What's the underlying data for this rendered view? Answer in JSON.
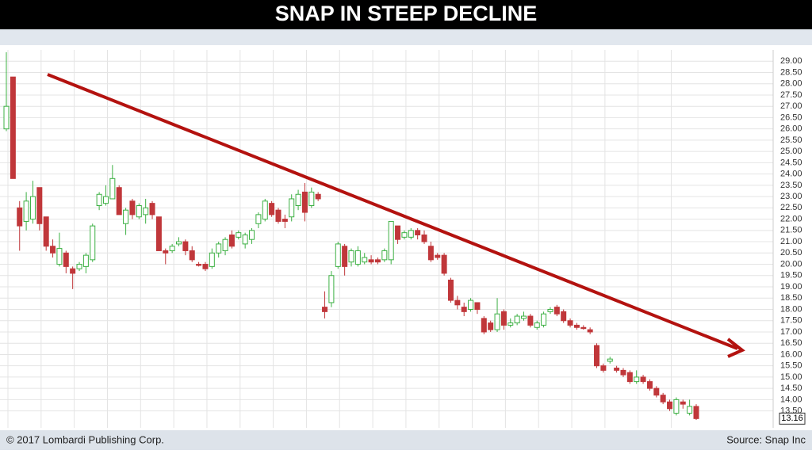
{
  "chart_data": {
    "type": "candlestick",
    "title": "SNAP IN STEEP DECLINE",
    "footer_left": "© 2017 Lombardi Publishing Corp.",
    "source": "Source: Snap Inc",
    "last_price": 13.16,
    "up_color": "#3cb043",
    "down_color": "#c0373a",
    "open": [
      26.0,
      28.3,
      22.5,
      21.9,
      22.0,
      23.4,
      22.1,
      20.8,
      20.0,
      20.5,
      19.8,
      19.8,
      19.9,
      20.2,
      22.6,
      22.7,
      22.9,
      23.4,
      21.8,
      22.8,
      22.1,
      22.2,
      22.7,
      22.1,
      20.6,
      20.6,
      20.9,
      21.0,
      20.6,
      20.0,
      20.0,
      19.9,
      20.5,
      20.6,
      21.3,
      21.2,
      20.9,
      21.1,
      21.8,
      22.0,
      22.7,
      22.4,
      22.0,
      22.1,
      22.6,
      23.2,
      22.6,
      23.1,
      18.1,
      18.3,
      19.9,
      20.8,
      20.1,
      20.0,
      20.1,
      20.2,
      20.2,
      20.2,
      20.2,
      21.7,
      21.2,
      21.2,
      21.5,
      21.3,
      20.8,
      20.4,
      20.4,
      19.3,
      18.4,
      18.1,
      18.0,
      18.3,
      17.6,
      17.4,
      17.1,
      17.9,
      17.3,
      17.4,
      17.6,
      17.7,
      17.2,
      17.3,
      17.9,
      18.1,
      17.9,
      17.5,
      17.3,
      17.2,
      17.1,
      16.4,
      15.5,
      15.7,
      15.4,
      15.3,
      15.2,
      14.8,
      15.0,
      14.8,
      14.5,
      14.2,
      13.9,
      13.4,
      13.9,
      13.4,
      13.7
    ],
    "high": [
      29.4,
      28.3,
      22.8,
      23.2,
      23.7,
      23.4,
      22.1,
      21.1,
      21.4,
      20.6,
      19.9,
      20.1,
      20.5,
      21.8,
      23.2,
      23.5,
      24.4,
      23.5,
      22.5,
      22.9,
      22.7,
      22.9,
      22.8,
      22.1,
      20.7,
      20.9,
      21.2,
      21.1,
      20.8,
      20.1,
      20.1,
      20.7,
      21.0,
      21.2,
      21.5,
      21.5,
      21.4,
      21.6,
      22.3,
      22.9,
      22.8,
      22.5,
      22.2,
      23.1,
      23.3,
      23.6,
      23.4,
      23.2,
      18.8,
      19.7,
      21.0,
      20.9,
      20.7,
      20.8,
      20.5,
      20.4,
      20.3,
      20.7,
      21.9,
      21.7,
      21.5,
      21.6,
      21.6,
      21.5,
      21.0,
      20.5,
      20.5,
      19.4,
      18.6,
      18.3,
      18.5,
      18.3,
      17.7,
      17.5,
      18.5,
      18.0,
      17.6,
      17.8,
      17.9,
      17.8,
      17.5,
      17.9,
      18.1,
      18.2,
      18.0,
      17.6,
      17.4,
      17.3,
      17.2,
      16.5,
      15.6,
      15.9,
      15.5,
      15.4,
      15.3,
      15.3,
      15.1,
      14.9,
      14.6,
      14.3,
      14.0,
      14.1,
      14.0,
      14.0,
      13.8
    ],
    "low": [
      25.9,
      23.8,
      20.6,
      21.5,
      21.8,
      21.5,
      20.6,
      20.3,
      19.9,
      19.6,
      18.9,
      19.7,
      19.6,
      20.1,
      22.4,
      22.6,
      22.9,
      22.2,
      21.3,
      22.0,
      22.0,
      21.8,
      22.0,
      20.6,
      20.0,
      20.5,
      20.8,
      20.4,
      20.1,
      19.9,
      19.7,
      19.8,
      20.3,
      20.4,
      20.7,
      21.1,
      20.7,
      20.9,
      21.6,
      21.9,
      22.1,
      21.8,
      21.6,
      21.9,
      22.4,
      21.9,
      22.5,
      22.8,
      17.6,
      18.1,
      19.8,
      19.5,
      19.9,
      19.9,
      20.0,
      20.0,
      20.0,
      20.1,
      20.0,
      20.9,
      21.1,
      21.1,
      21.1,
      20.9,
      20.1,
      20.2,
      19.5,
      18.3,
      18.0,
      17.7,
      17.9,
      17.8,
      16.9,
      17.0,
      17.0,
      17.1,
      17.2,
      17.3,
      17.5,
      17.2,
      17.1,
      17.2,
      17.8,
      17.7,
      17.4,
      17.2,
      17.1,
      17.1,
      16.9,
      15.4,
      15.2,
      15.6,
      15.2,
      15.0,
      14.7,
      14.7,
      14.7,
      14.4,
      14.1,
      13.8,
      13.5,
      13.3,
      13.6,
      13.3,
      13.1
    ],
    "close": [
      27.0,
      23.8,
      21.7,
      22.8,
      23.0,
      21.8,
      20.8,
      20.5,
      20.7,
      19.9,
      19.6,
      20.0,
      20.4,
      21.7,
      23.1,
      23.0,
      23.8,
      22.2,
      22.4,
      22.2,
      22.6,
      22.5,
      22.2,
      20.6,
      20.5,
      20.8,
      21.0,
      20.6,
      20.2,
      19.95,
      19.8,
      20.5,
      20.9,
      21.1,
      20.8,
      21.4,
      21.3,
      21.5,
      22.2,
      22.8,
      22.2,
      21.9,
      21.9,
      22.9,
      23.1,
      22.3,
      23.2,
      22.9,
      17.9,
      19.5,
      20.9,
      19.9,
      20.6,
      20.6,
      20.3,
      20.1,
      20.1,
      20.6,
      21.9,
      21.1,
      21.4,
      21.5,
      21.3,
      21.0,
      20.2,
      20.3,
      19.6,
      18.4,
      18.2,
      17.9,
      18.4,
      18.0,
      17.0,
      17.1,
      17.8,
      17.3,
      17.4,
      17.7,
      17.7,
      17.3,
      17.4,
      17.8,
      18.0,
      17.8,
      17.5,
      17.3,
      17.2,
      17.15,
      17.0,
      15.5,
      15.3,
      15.8,
      15.3,
      15.1,
      14.8,
      15.0,
      14.8,
      14.5,
      14.2,
      13.9,
      13.6,
      14.0,
      13.8,
      13.7,
      13.16
    ],
    "ylim": [
      12.75,
      29.5
    ],
    "yticks": [
      {
        "value": 13.5,
        "label": "13.50"
      },
      {
        "value": 14,
        "label": "14.00"
      },
      {
        "value": 14.5,
        "label": "14.50"
      },
      {
        "value": 15,
        "label": "15.00"
      },
      {
        "value": 15.5,
        "label": "15.50"
      },
      {
        "value": 16,
        "label": "16.00"
      },
      {
        "value": 16.5,
        "label": "16.50"
      },
      {
        "value": 17,
        "label": "17.00"
      },
      {
        "value": 17.5,
        "label": "17.50"
      },
      {
        "value": 18,
        "label": "18.00"
      },
      {
        "value": 18.5,
        "label": "18.50"
      },
      {
        "value": 19,
        "label": "19.00"
      },
      {
        "value": 19.5,
        "label": "19.50"
      },
      {
        "value": 20,
        "label": "20.00"
      },
      {
        "value": 20.5,
        "label": "20.50"
      },
      {
        "value": 21,
        "label": "21.00"
      },
      {
        "value": 21.5,
        "label": "21.50"
      },
      {
        "value": 22,
        "label": "22.00"
      },
      {
        "value": 22.5,
        "label": "22.50"
      },
      {
        "value": 23,
        "label": "23.00"
      },
      {
        "value": 23.5,
        "label": "23.50"
      },
      {
        "value": 24,
        "label": "24.00"
      },
      {
        "value": 24.5,
        "label": "24.50"
      },
      {
        "value": 25,
        "label": "25.00"
      },
      {
        "value": 25.5,
        "label": "25.50"
      },
      {
        "value": 26,
        "label": "26.00"
      },
      {
        "value": 26.5,
        "label": "26.50"
      },
      {
        "value": 27,
        "label": "27.00"
      },
      {
        "value": 27.5,
        "label": "27.50"
      },
      {
        "value": 28,
        "label": "28.00"
      },
      {
        "value": 28.5,
        "label": "28.50"
      },
      {
        "value": 29,
        "label": "29.00"
      }
    ],
    "grid": true
  }
}
